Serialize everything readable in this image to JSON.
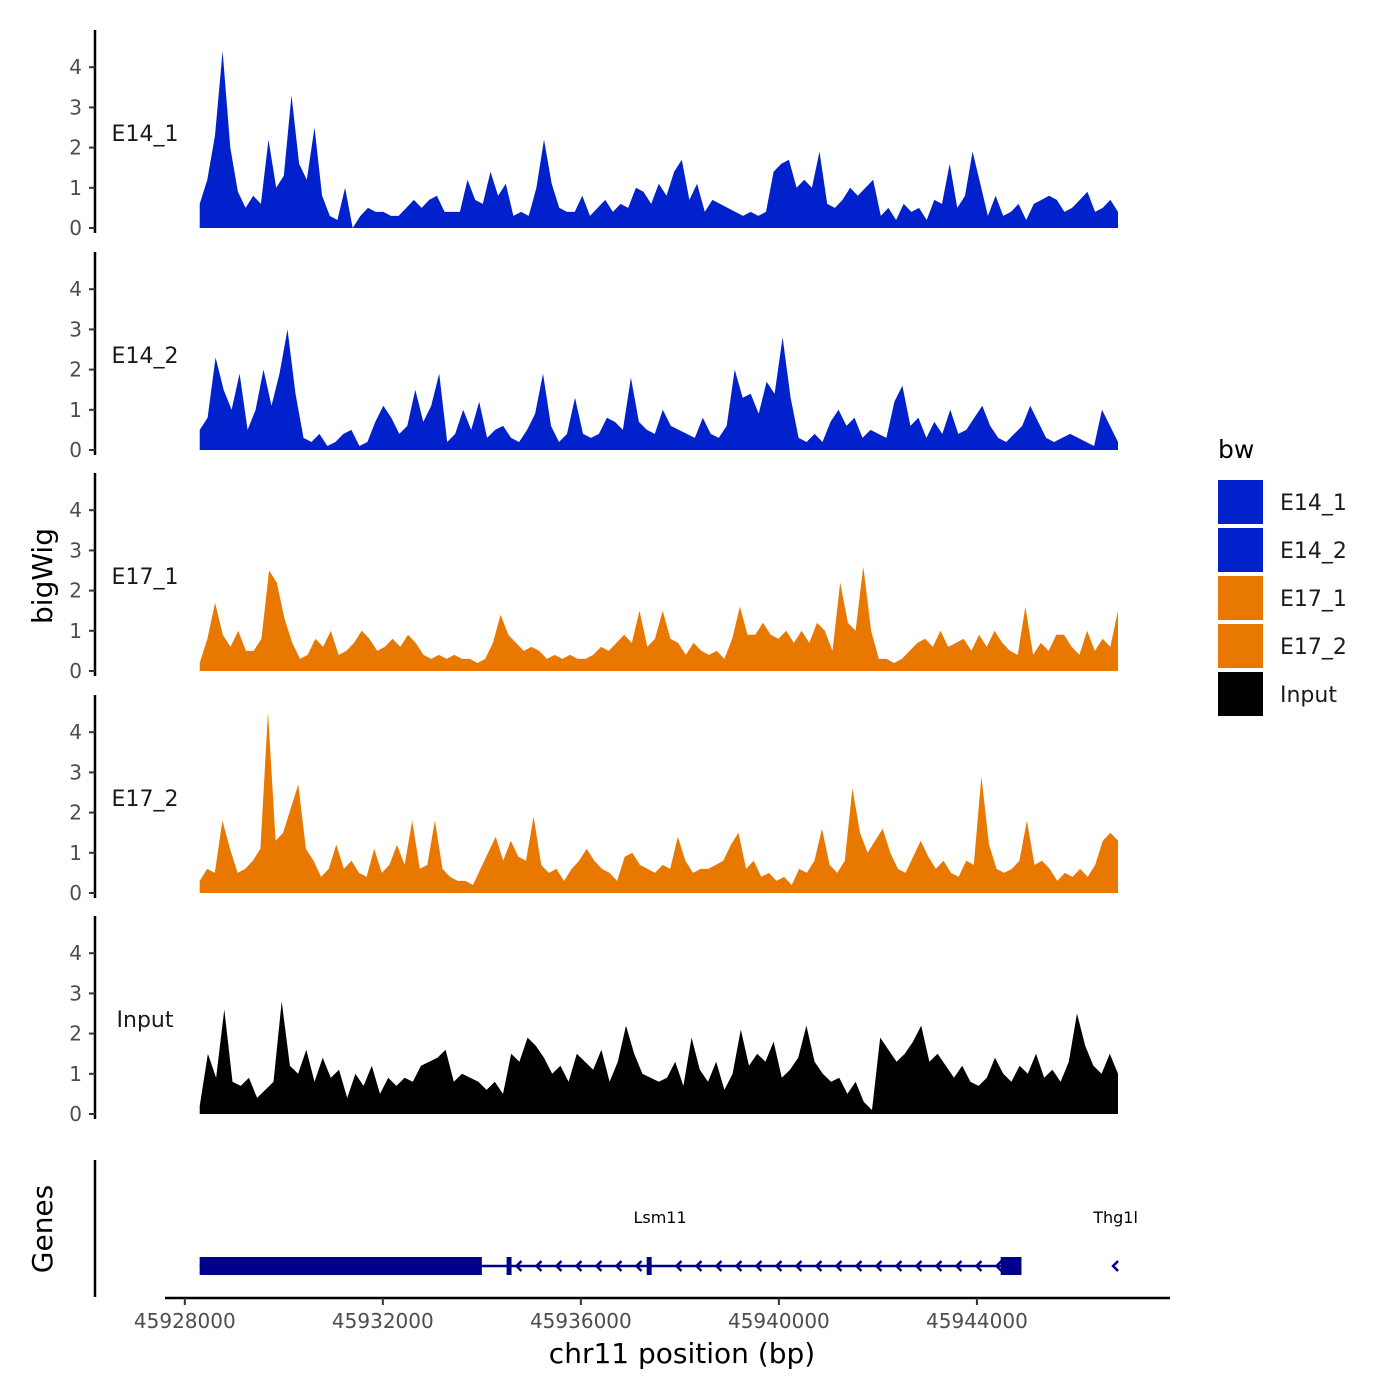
{
  "chart_data": {
    "type": "area",
    "title": "",
    "ylabel": "bigWig",
    "xlabel": "chr11 position (bp)",
    "genes_label": "Genes",
    "ylim": [
      0,
      4.9
    ],
    "y_ticks": [
      "0",
      "1",
      "2",
      "3",
      "4"
    ],
    "x_range": [
      45927600,
      45947900
    ],
    "x_ticks": [
      {
        "value": 45928000,
        "label": "45928000"
      },
      {
        "value": 45932000,
        "label": "45932000"
      },
      {
        "value": 45936000,
        "label": "45936000"
      },
      {
        "value": 45940000,
        "label": "45940000"
      },
      {
        "value": 45944000,
        "label": "45944000"
      }
    ],
    "x_start": 45928300,
    "x_end": 45946850,
    "legend": {
      "title": "bw",
      "entries": [
        {
          "name": "E14_1",
          "color": "#0021cc"
        },
        {
          "name": "E14_2",
          "color": "#0021cc"
        },
        {
          "name": "E17_1",
          "color": "#e87800"
        },
        {
          "name": "E17_2",
          "color": "#e87800"
        },
        {
          "name": "Input",
          "color": "#000000"
        }
      ]
    },
    "series": [
      {
        "name": "E14_1",
        "color": "#0021cc",
        "values": [
          0.6,
          1.2,
          2.3,
          4.4,
          2.0,
          0.9,
          0.5,
          0.8,
          0.6,
          2.2,
          1.0,
          1.3,
          3.3,
          1.6,
          1.2,
          2.5,
          0.8,
          0.3,
          0.2,
          1.0,
          0,
          0.3,
          0.5,
          0.4,
          0.4,
          0.3,
          0.3,
          0.5,
          0.7,
          0.5,
          0.7,
          0.8,
          0.4,
          0.4,
          0.4,
          1.2,
          0.7,
          0.6,
          1.4,
          0.8,
          1.1,
          0.3,
          0.4,
          0.3,
          1.0,
          2.2,
          1.1,
          0.5,
          0.4,
          0.4,
          0.8,
          0.3,
          0.5,
          0.7,
          0.4,
          0.6,
          0.5,
          1.0,
          0.9,
          0.6,
          1.1,
          0.8,
          1.4,
          1.7,
          0.7,
          1.1,
          0.4,
          0.7,
          0.6,
          0.5,
          0.4,
          0.3,
          0.4,
          0.3,
          0.4,
          1.4,
          1.6,
          1.7,
          1.0,
          1.2,
          1.0,
          1.9,
          0.6,
          0.5,
          0.7,
          1.0,
          0.8,
          1.0,
          1.2,
          0.3,
          0.5,
          0.2,
          0.6,
          0.4,
          0.5,
          0.2,
          0.7,
          0.6,
          1.6,
          0.5,
          0.8,
          1.9,
          1.1,
          0.3,
          0.8,
          0.3,
          0.4,
          0.6,
          0.2,
          0.6,
          0.7,
          0.8,
          0.7,
          0.4,
          0.5,
          0.7,
          0.9,
          0.4,
          0.5,
          0.7,
          0.4
        ]
      },
      {
        "name": "E14_2",
        "color": "#0021cc",
        "values": [
          0.5,
          0.8,
          2.3,
          1.5,
          1.0,
          1.9,
          0.5,
          1.0,
          2.0,
          1.1,
          1.9,
          3.0,
          1.4,
          0.3,
          0.2,
          0.4,
          0.1,
          0.2,
          0.4,
          0.5,
          0.1,
          0.2,
          0.7,
          1.1,
          0.8,
          0.4,
          0.6,
          1.5,
          0.7,
          1.1,
          1.9,
          0.2,
          0.4,
          1.0,
          0.5,
          1.2,
          0.3,
          0.5,
          0.6,
          0.3,
          0.2,
          0.5,
          0.9,
          1.9,
          0.6,
          0.2,
          0.4,
          1.3,
          0.4,
          0.3,
          0.4,
          0.8,
          0.7,
          0.5,
          1.8,
          0.7,
          0.5,
          0.4,
          1.0,
          0.6,
          0.5,
          0.4,
          0.3,
          0.8,
          0.4,
          0.3,
          0.6,
          2.0,
          1.3,
          1.4,
          0.9,
          1.7,
          1.4,
          2.8,
          1.3,
          0.3,
          0.2,
          0.4,
          0.2,
          0.7,
          1.0,
          0.6,
          0.8,
          0.3,
          0.5,
          0.4,
          0.3,
          1.2,
          1.6,
          0.6,
          0.8,
          0.3,
          0.7,
          0.4,
          1.0,
          0.4,
          0.5,
          0.8,
          1.1,
          0.6,
          0.3,
          0.2,
          0.4,
          0.6,
          1.1,
          0.7,
          0.3,
          0.2,
          0.3,
          0.4,
          0.3,
          0.2,
          0.1,
          1.0,
          0.6,
          0.2
        ]
      },
      {
        "name": "E17_1",
        "color": "#e87800",
        "values": [
          0.2,
          0.8,
          1.7,
          0.9,
          0.6,
          1.0,
          0.5,
          0.5,
          0.8,
          2.5,
          2.2,
          1.3,
          0.7,
          0.3,
          0.4,
          0.8,
          0.6,
          1.0,
          0.4,
          0.5,
          0.7,
          1.0,
          0.8,
          0.5,
          0.6,
          0.8,
          0.6,
          0.9,
          0.7,
          0.4,
          0.3,
          0.4,
          0.3,
          0.4,
          0.3,
          0.3,
          0.2,
          0.3,
          0.7,
          1.4,
          0.9,
          0.7,
          0.5,
          0.6,
          0.5,
          0.3,
          0.4,
          0.3,
          0.4,
          0.3,
          0.3,
          0.4,
          0.6,
          0.5,
          0.7,
          0.9,
          0.7,
          1.5,
          0.6,
          0.8,
          1.5,
          0.8,
          0.7,
          0.4,
          0.7,
          0.5,
          0.4,
          0.5,
          0.3,
          0.8,
          1.6,
          0.9,
          0.9,
          1.2,
          0.9,
          0.8,
          1.0,
          0.7,
          1.0,
          0.7,
          1.2,
          1.0,
          0.5,
          2.2,
          1.2,
          1.0,
          2.6,
          1.0,
          0.3,
          0.3,
          0.2,
          0.3,
          0.5,
          0.7,
          0.8,
          0.6,
          1.0,
          0.6,
          0.7,
          0.8,
          0.5,
          0.9,
          0.6,
          1.0,
          0.7,
          0.5,
          0.4,
          1.6,
          0.4,
          0.7,
          0.5,
          0.9,
          0.9,
          0.6,
          0.4,
          1.0,
          0.5,
          0.8,
          0.6,
          1.5
        ]
      },
      {
        "name": "E17_2",
        "color": "#e87800",
        "values": [
          0.3,
          0.6,
          0.5,
          1.8,
          1.1,
          0.5,
          0.6,
          0.8,
          1.1,
          4.5,
          1.3,
          1.5,
          2.1,
          2.7,
          1.1,
          0.8,
          0.4,
          0.6,
          1.2,
          0.6,
          0.8,
          0.5,
          0.4,
          1.1,
          0.5,
          0.7,
          1.2,
          0.7,
          1.8,
          0.6,
          0.7,
          1.8,
          0.6,
          0.4,
          0.3,
          0.3,
          0.2,
          0.6,
          1.0,
          1.4,
          0.8,
          1.3,
          0.9,
          0.8,
          1.9,
          0.7,
          0.5,
          0.6,
          0.3,
          0.6,
          0.8,
          1.1,
          0.8,
          0.6,
          0.5,
          0.3,
          0.9,
          1.0,
          0.7,
          0.6,
          0.5,
          0.7,
          0.6,
          1.4,
          0.8,
          0.5,
          0.6,
          0.6,
          0.7,
          0.8,
          1.2,
          1.5,
          0.6,
          0.8,
          0.4,
          0.5,
          0.3,
          0.4,
          0.2,
          0.6,
          0.5,
          0.8,
          1.6,
          0.7,
          0.5,
          0.8,
          2.6,
          1.5,
          1.0,
          1.3,
          1.6,
          1.0,
          0.6,
          0.5,
          0.9,
          1.3,
          0.9,
          0.6,
          0.8,
          0.5,
          0.4,
          0.8,
          0.7,
          2.9,
          1.2,
          0.6,
          0.5,
          0.6,
          0.8,
          1.8,
          0.7,
          0.8,
          0.6,
          0.3,
          0.5,
          0.4,
          0.6,
          0.4,
          0.7,
          1.3,
          1.5,
          1.3
        ]
      },
      {
        "name": "Input",
        "color": "#000000",
        "values": [
          0.2,
          1.5,
          0.9,
          2.6,
          0.8,
          0.7,
          0.9,
          0.4,
          0.6,
          0.8,
          2.8,
          1.2,
          1.0,
          1.6,
          0.8,
          1.4,
          0.9,
          1.1,
          0.4,
          1.0,
          0.7,
          1.2,
          0.5,
          0.9,
          0.7,
          0.9,
          0.8,
          1.2,
          1.3,
          1.4,
          1.6,
          0.8,
          1.0,
          0.9,
          0.8,
          0.6,
          0.8,
          0.5,
          1.5,
          1.3,
          1.9,
          1.7,
          1.4,
          1.0,
          1.2,
          0.8,
          1.5,
          1.3,
          1.1,
          1.6,
          0.8,
          1.3,
          2.2,
          1.5,
          1.0,
          0.9,
          0.8,
          0.9,
          1.3,
          0.7,
          1.9,
          1.1,
          0.8,
          1.3,
          0.6,
          1.0,
          2.1,
          1.2,
          1.5,
          1.3,
          1.8,
          0.9,
          1.1,
          1.4,
          2.2,
          1.3,
          1.0,
          0.8,
          0.9,
          0.5,
          0.8,
          0.3,
          0.1,
          1.9,
          1.6,
          1.3,
          1.5,
          1.8,
          2.2,
          1.3,
          1.5,
          1.2,
          0.9,
          1.2,
          0.8,
          0.7,
          0.9,
          1.4,
          1.0,
          0.8,
          1.2,
          1.0,
          1.5,
          0.9,
          1.1,
          0.8,
          1.3,
          2.5,
          1.7,
          1.2,
          1.0,
          1.5,
          1.0
        ]
      }
    ],
    "genes": [
      {
        "name": "Lsm11",
        "start": 45928300,
        "end": 45944900,
        "strand": "-",
        "exons": [
          {
            "start": 45928300,
            "end": 45934000,
            "thick": true
          },
          {
            "start": 45934500,
            "end": 45934600,
            "thick": false
          },
          {
            "start": 45937330,
            "end": 45937430,
            "thick": false
          },
          {
            "start": 45944480,
            "end": 45944900,
            "thick": true
          }
        ]
      },
      {
        "name": "Thg1l",
        "start": 45946750,
        "end": 45946850,
        "strand": "-",
        "exons": []
      }
    ]
  }
}
